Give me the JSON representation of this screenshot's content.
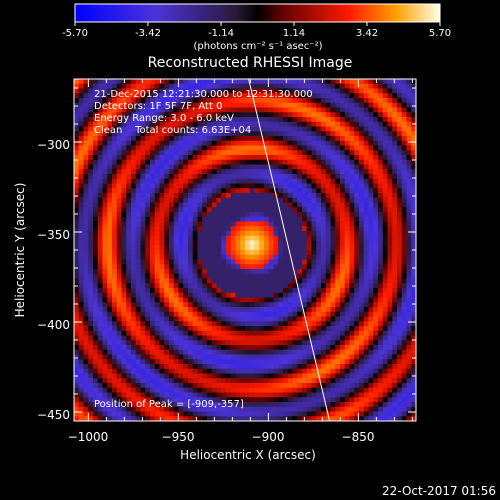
{
  "colorbar": {
    "ticks": [
      "-5.70",
      "-3.42",
      "-1.14",
      "1.14",
      "3.42",
      "5.70"
    ],
    "unit_label": "(photons cm⁻² s⁻¹ asec⁻²)"
  },
  "annotations": [
    "21-Dec-2015 12:21:30.000 to 12:31:30.000",
    "Detectors: 1F 5F 7F, Att 0",
    "Energy Range: 3.0 - 6.0 keV",
    "Clean    Total counts: 6.63E+04"
  ],
  "peak_label": "Position of Peak = [-909,-357]",
  "timestamp": "22-Oct-2017 01:56",
  "chart_data": {
    "type": "heatmap",
    "title": "Reconstructed RHESSI Image",
    "xlabel": "Heliocentric X (arcsec)",
    "ylabel": "Heliocentric Y (arcsec)",
    "xlim": [
      -1008,
      -818
    ],
    "ylim": [
      -455,
      -265
    ],
    "xticks": [
      -1000,
      -950,
      -900,
      -850
    ],
    "yticks": [
      -300,
      -350,
      -400,
      -450
    ],
    "xtick_labels": [
      "−1000",
      "−950",
      "−900",
      "−850"
    ],
    "ytick_labels": [
      "−300",
      "−350",
      "−400",
      "−450"
    ],
    "colorbar_range": [
      -5.7,
      5.7
    ],
    "peak": {
      "x": -909,
      "y": -357
    },
    "limb_line": [
      [
        -911,
        -265
      ],
      [
        -866,
        -455
      ]
    ]
  }
}
